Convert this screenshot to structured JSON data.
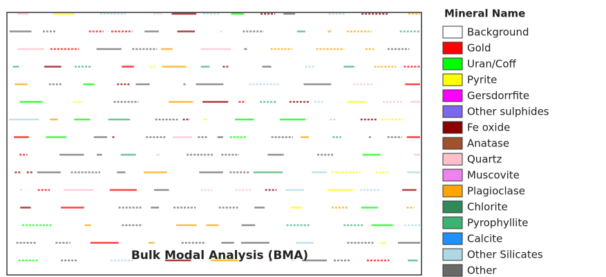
{
  "map": {
    "label": "Bulk Modal Analysis (BMA)"
  },
  "legend": {
    "title": "Mineral Name",
    "items": [
      {
        "name": "Background",
        "color": "#ffffff"
      },
      {
        "name": "Gold",
        "color": "#ff0000"
      },
      {
        "name": "Uran/Coff",
        "color": "#00ff00"
      },
      {
        "name": "Pyrite",
        "color": "#ffff00"
      },
      {
        "name": "Gersdorrfite",
        "color": "#ff00ff"
      },
      {
        "name": "Other sulphides",
        "color": "#7b68ee"
      },
      {
        "name": "Fe oxide",
        "color": "#8b0000"
      },
      {
        "name": "Anatase",
        "color": "#a0522d"
      },
      {
        "name": "Quartz",
        "color": "#ffc0cb"
      },
      {
        "name": "Muscovite",
        "color": "#ee82ee"
      },
      {
        "name": "Plagioclase",
        "color": "#ffa500"
      },
      {
        "name": "Chlorite",
        "color": "#2e8b57"
      },
      {
        "name": "Pyrophyllite",
        "color": "#3cb371"
      },
      {
        "name": "Calcite",
        "color": "#1e90ff"
      },
      {
        "name": "Other Silicates",
        "color": "#add8e6"
      },
      {
        "name": "Other",
        "color": "#696969"
      }
    ]
  }
}
